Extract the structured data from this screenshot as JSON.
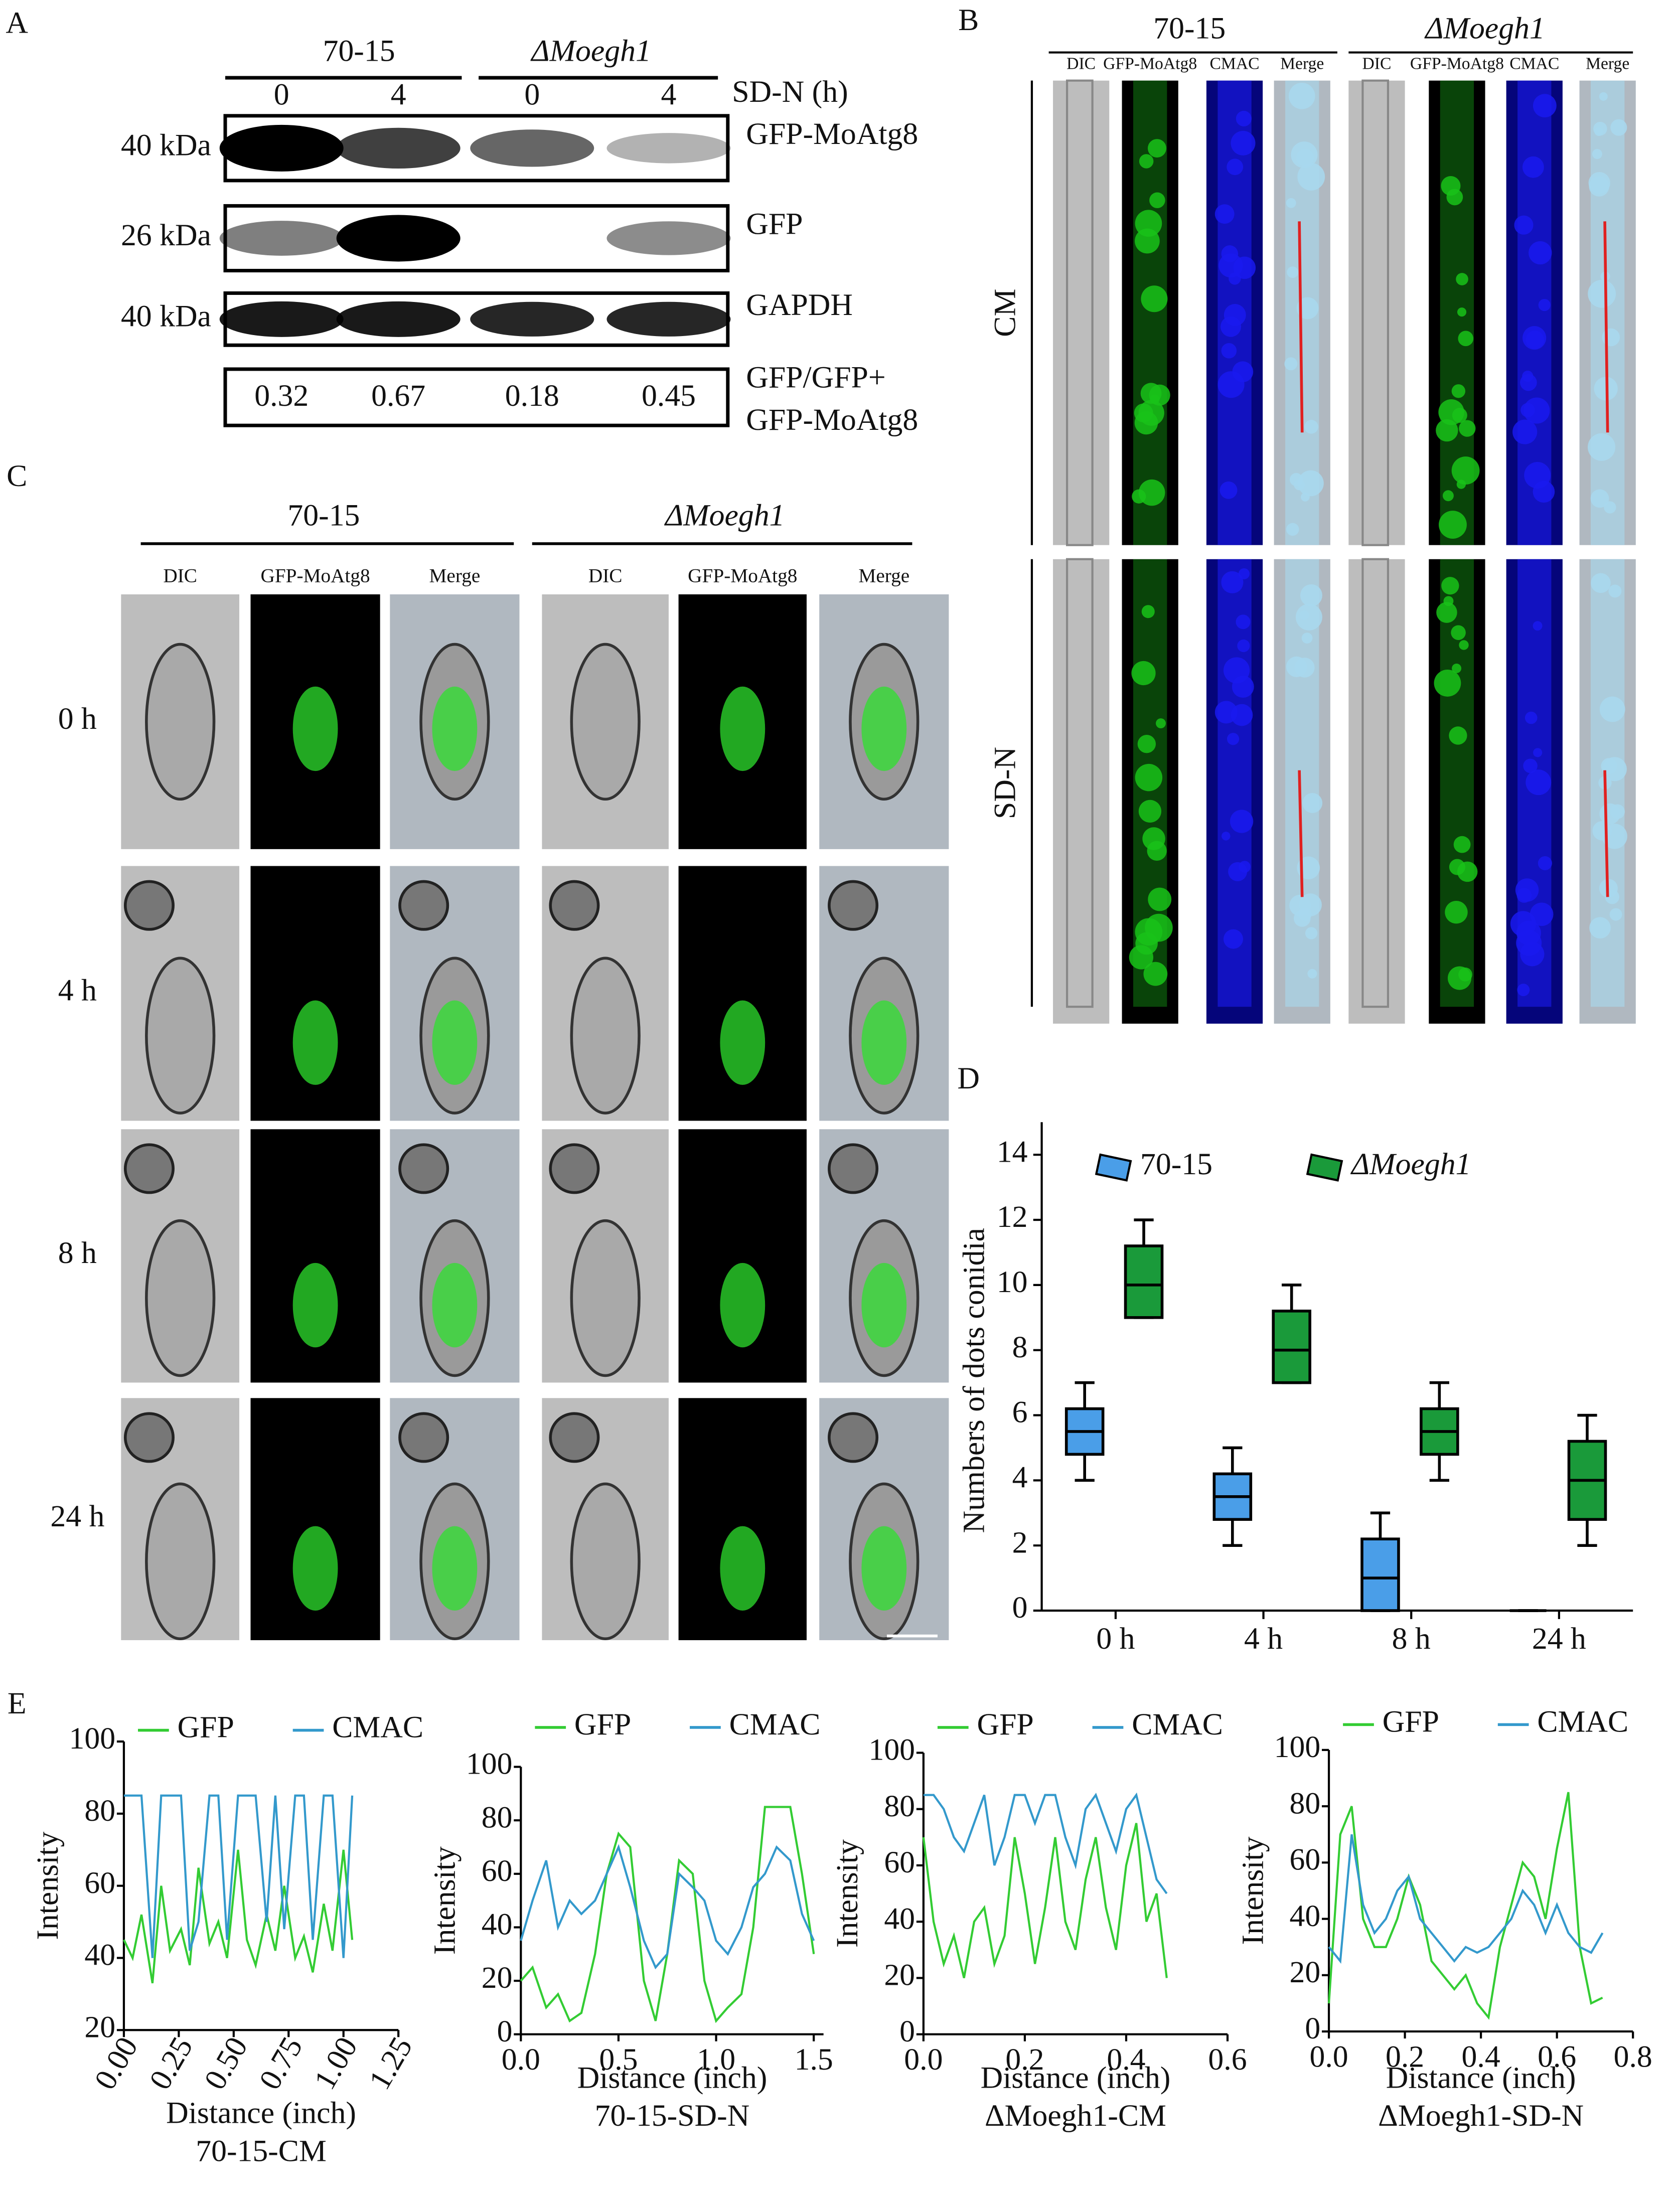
{
  "panels": {
    "A": {
      "label": "A",
      "groups": [
        "70-15",
        "ΔMoegh1"
      ],
      "time_label": "SD-N (h)",
      "times": [
        "0",
        "4",
        "0",
        "4"
      ],
      "rows": [
        {
          "size": "40 kDa",
          "label": "GFP-MoAtg8"
        },
        {
          "size": "26 kDa",
          "label": "GFP"
        },
        {
          "size": "40 kDa",
          "label": "GAPDH"
        }
      ],
      "ratios": [
        "0.32",
        "0.67",
        "0.18",
        "0.45"
      ],
      "ratio_label": [
        "GFP/GFP+",
        "GFP-MoAtg8"
      ]
    },
    "B": {
      "label": "B",
      "groups": [
        "70-15",
        "ΔMoegh1"
      ],
      "columns": [
        "DIC",
        "GFP-MoAtg8",
        "CMAC",
        "Merge"
      ],
      "rows": [
        "CM",
        "SD-N"
      ]
    },
    "C": {
      "label": "C",
      "groups": [
        "70-15",
        "ΔMoegh1"
      ],
      "columns": [
        "DIC",
        "GFP-MoAtg8",
        "Merge"
      ],
      "rows": [
        "0 h",
        "4 h",
        "8 h",
        "24 h"
      ]
    },
    "D": {
      "label": "D"
    },
    "E": {
      "label": "E"
    }
  },
  "chart_data": [
    {
      "type": "box",
      "ylabel": "Numbers of dots conidia",
      "categories": [
        "0 h",
        "4 h",
        "8 h",
        "24 h"
      ],
      "ylim": [
        0,
        15
      ],
      "yticks": [
        0,
        2,
        4,
        6,
        8,
        10,
        12,
        14
      ],
      "series": [
        {
          "name": "70-15",
          "color": "#4a9ee8",
          "min": [
            4,
            2,
            0,
            0
          ],
          "q1": [
            4.8,
            2.8,
            0,
            0
          ],
          "median": [
            5.5,
            3.5,
            1,
            0
          ],
          "q3": [
            6.2,
            4.2,
            2.2,
            0
          ],
          "max": [
            7,
            5,
            3,
            0
          ]
        },
        {
          "name": "ΔMoegh1",
          "color": "#1a9a3a",
          "min": [
            9,
            7,
            4,
            2
          ],
          "q1": [
            9,
            7,
            4.8,
            2.8
          ],
          "median": [
            10,
            8,
            5.5,
            4
          ],
          "q3": [
            11.2,
            9.2,
            6.2,
            5.2
          ],
          "max": [
            12,
            10,
            7,
            6
          ]
        }
      ]
    },
    {
      "type": "line",
      "title": "70-15-CM",
      "xlabel": "Distance (inch)",
      "ylabel": "Intensity",
      "xlim": [
        0,
        1.25
      ],
      "ylim": [
        20,
        100
      ],
      "xticks": [
        {
          "value": 0,
          "label": "0.00"
        },
        {
          "value": 0.25,
          "label": "0.25"
        },
        {
          "value": 0.5,
          "label": "0.50"
        },
        {
          "value": 0.75,
          "label": "0.75"
        },
        {
          "value": 1,
          "label": "1.00"
        },
        {
          "value": 1.25,
          "label": "1.25"
        }
      ],
      "yticks": [
        20,
        40,
        60,
        80,
        100
      ],
      "x": [
        0,
        0.04,
        0.08,
        0.13,
        0.17,
        0.21,
        0.26,
        0.3,
        0.34,
        0.39,
        0.43,
        0.47,
        0.52,
        0.56,
        0.6,
        0.65,
        0.69,
        0.73,
        0.78,
        0.82,
        0.86,
        0.91,
        0.95,
        1.0,
        1.04
      ],
      "series": [
        {
          "name": "GFP",
          "color": "#33cc33",
          "values": [
            45,
            40,
            52,
            33,
            60,
            42,
            48,
            38,
            65,
            44,
            50,
            40,
            70,
            45,
            38,
            52,
            42,
            60,
            40,
            46,
            36,
            55,
            42,
            70,
            45
          ]
        },
        {
          "name": "CMAC",
          "color": "#3399cc",
          "values": [
            85,
            85,
            85,
            40,
            85,
            85,
            85,
            42,
            50,
            85,
            85,
            45,
            85,
            85,
            85,
            50,
            85,
            48,
            85,
            85,
            45,
            85,
            85,
            40,
            85
          ]
        }
      ]
    },
    {
      "type": "line",
      "title": "70-15-SD-N",
      "xlabel": "Distance (inch)",
      "ylabel": "Intensity",
      "xlim": [
        0,
        1.55
      ],
      "ylim": [
        0,
        100
      ],
      "xticks": [
        {
          "value": 0,
          "label": "0.0"
        },
        0.5,
        {
          "value": 1,
          "label": "1.0"
        },
        1.5
      ],
      "yticks": [
        0,
        20,
        40,
        60,
        80,
        100
      ],
      "x": [
        0,
        0.06,
        0.13,
        0.19,
        0.25,
        0.31,
        0.38,
        0.44,
        0.5,
        0.56,
        0.63,
        0.69,
        0.75,
        0.81,
        0.88,
        0.94,
        1.0,
        1.06,
        1.13,
        1.19,
        1.25,
        1.31,
        1.38,
        1.44,
        1.5
      ],
      "series": [
        {
          "name": "GFP",
          "color": "#33cc33",
          "values": [
            20,
            25,
            10,
            15,
            5,
            8,
            30,
            60,
            75,
            70,
            20,
            5,
            30,
            65,
            60,
            20,
            5,
            10,
            15,
            40,
            85,
            85,
            85,
            60,
            30
          ]
        },
        {
          "name": "CMAC",
          "color": "#3399cc",
          "values": [
            35,
            50,
            65,
            40,
            50,
            45,
            50,
            60,
            70,
            55,
            35,
            25,
            30,
            60,
            55,
            50,
            35,
            30,
            40,
            55,
            60,
            70,
            65,
            45,
            35
          ]
        }
      ]
    },
    {
      "type": "line",
      "title": "ΔMoegh1-CM",
      "xlabel": "Distance (inch)",
      "ylabel": "Intensity",
      "xlim": [
        0,
        0.6
      ],
      "ylim": [
        0,
        100
      ],
      "xticks": [
        {
          "value": 0,
          "label": "0.0"
        },
        0.2,
        0.4,
        0.6
      ],
      "yticks": [
        0,
        20,
        40,
        60,
        80,
        100
      ],
      "x": [
        0,
        0.02,
        0.04,
        0.06,
        0.08,
        0.1,
        0.12,
        0.14,
        0.16,
        0.18,
        0.2,
        0.22,
        0.24,
        0.26,
        0.28,
        0.3,
        0.32,
        0.34,
        0.36,
        0.38,
        0.4,
        0.42,
        0.44,
        0.46,
        0.48
      ],
      "series": [
        {
          "name": "GFP",
          "color": "#33cc33",
          "values": [
            70,
            40,
            25,
            35,
            20,
            40,
            45,
            25,
            35,
            70,
            50,
            25,
            45,
            70,
            40,
            30,
            55,
            70,
            45,
            30,
            60,
            75,
            40,
            50,
            20
          ]
        },
        {
          "name": "CMAC",
          "color": "#3399cc",
          "values": [
            85,
            85,
            80,
            70,
            65,
            75,
            85,
            60,
            70,
            85,
            85,
            75,
            85,
            85,
            70,
            60,
            80,
            85,
            75,
            65,
            80,
            85,
            70,
            55,
            50
          ]
        }
      ]
    },
    {
      "type": "line",
      "title": "ΔMoegh1-SD-N",
      "xlabel": "Distance (inch)",
      "ylabel": "Intensity",
      "xlim": [
        0,
        0.8
      ],
      "ylim": [
        0,
        100
      ],
      "xticks": [
        {
          "value": 0,
          "label": "0.0"
        },
        0.2,
        0.4,
        0.6,
        0.8
      ],
      "yticks": [
        0,
        20,
        40,
        60,
        80,
        100
      ],
      "x": [
        0,
        0.03,
        0.06,
        0.09,
        0.12,
        0.15,
        0.18,
        0.21,
        0.24,
        0.27,
        0.3,
        0.33,
        0.36,
        0.39,
        0.42,
        0.45,
        0.48,
        0.51,
        0.54,
        0.57,
        0.6,
        0.63,
        0.66,
        0.69,
        0.72
      ],
      "series": [
        {
          "name": "GFP",
          "color": "#33cc33",
          "values": [
            10,
            70,
            80,
            40,
            30,
            30,
            40,
            55,
            45,
            25,
            20,
            15,
            20,
            10,
            5,
            30,
            45,
            60,
            55,
            40,
            65,
            85,
            30,
            10,
            12
          ]
        },
        {
          "name": "CMAC",
          "color": "#3399cc",
          "values": [
            30,
            25,
            70,
            45,
            35,
            40,
            50,
            55,
            40,
            35,
            30,
            25,
            30,
            28,
            30,
            35,
            40,
            50,
            45,
            35,
            45,
            35,
            30,
            28,
            35
          ]
        }
      ]
    }
  ]
}
